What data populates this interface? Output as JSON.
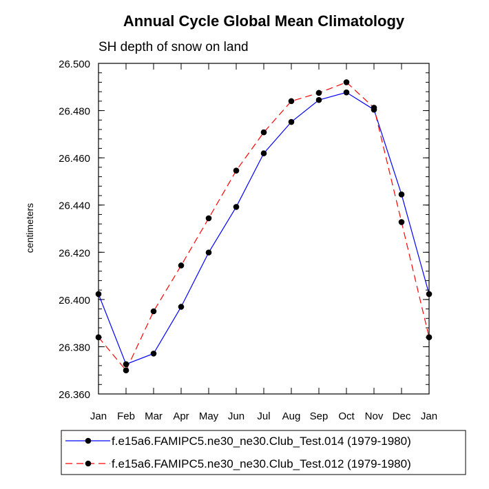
{
  "chart_data": {
    "type": "line",
    "title": "Annual Cycle Global Mean Climatology",
    "subtitle": "SH depth of snow on land",
    "xlabel": "",
    "ylabel": "centimeters",
    "categories": [
      "Jan",
      "Feb",
      "Mar",
      "Apr",
      "May",
      "Jun",
      "Jul",
      "Aug",
      "Sep",
      "Oct",
      "Nov",
      "Dec",
      "Jan"
    ],
    "ylim": [
      26.36,
      26.5
    ],
    "yticks": [
      "26.360",
      "26.380",
      "26.400",
      "26.420",
      "26.440",
      "26.460",
      "26.480",
      "26.500"
    ],
    "ytick_values": [
      26.36,
      26.38,
      26.4,
      26.42,
      26.44,
      26.46,
      26.48,
      26.5
    ],
    "legend_position": "bottom",
    "series": [
      {
        "name": "f.e15a6.FAMIPC5.ne30_ne30.Club_Test.014 (1979-1980)",
        "color": "#0000ff",
        "dash": "solid",
        "values": [
          26.4023,
          26.3726,
          26.3771,
          26.3969,
          26.4199,
          26.4392,
          26.4619,
          26.4752,
          26.4845,
          26.4877,
          26.4804,
          26.4445,
          26.4023
        ]
      },
      {
        "name": "f.e15a6.FAMIPC5.ne30_ne30.Club_Test.012 (1979-1980)",
        "color": "#ff0000",
        "dash": "dashed",
        "values": [
          26.384,
          26.37,
          26.395,
          26.4144,
          26.4344,
          26.4546,
          26.4708,
          26.484,
          26.4875,
          26.492,
          26.4812,
          26.4328,
          26.384
        ]
      }
    ]
  }
}
